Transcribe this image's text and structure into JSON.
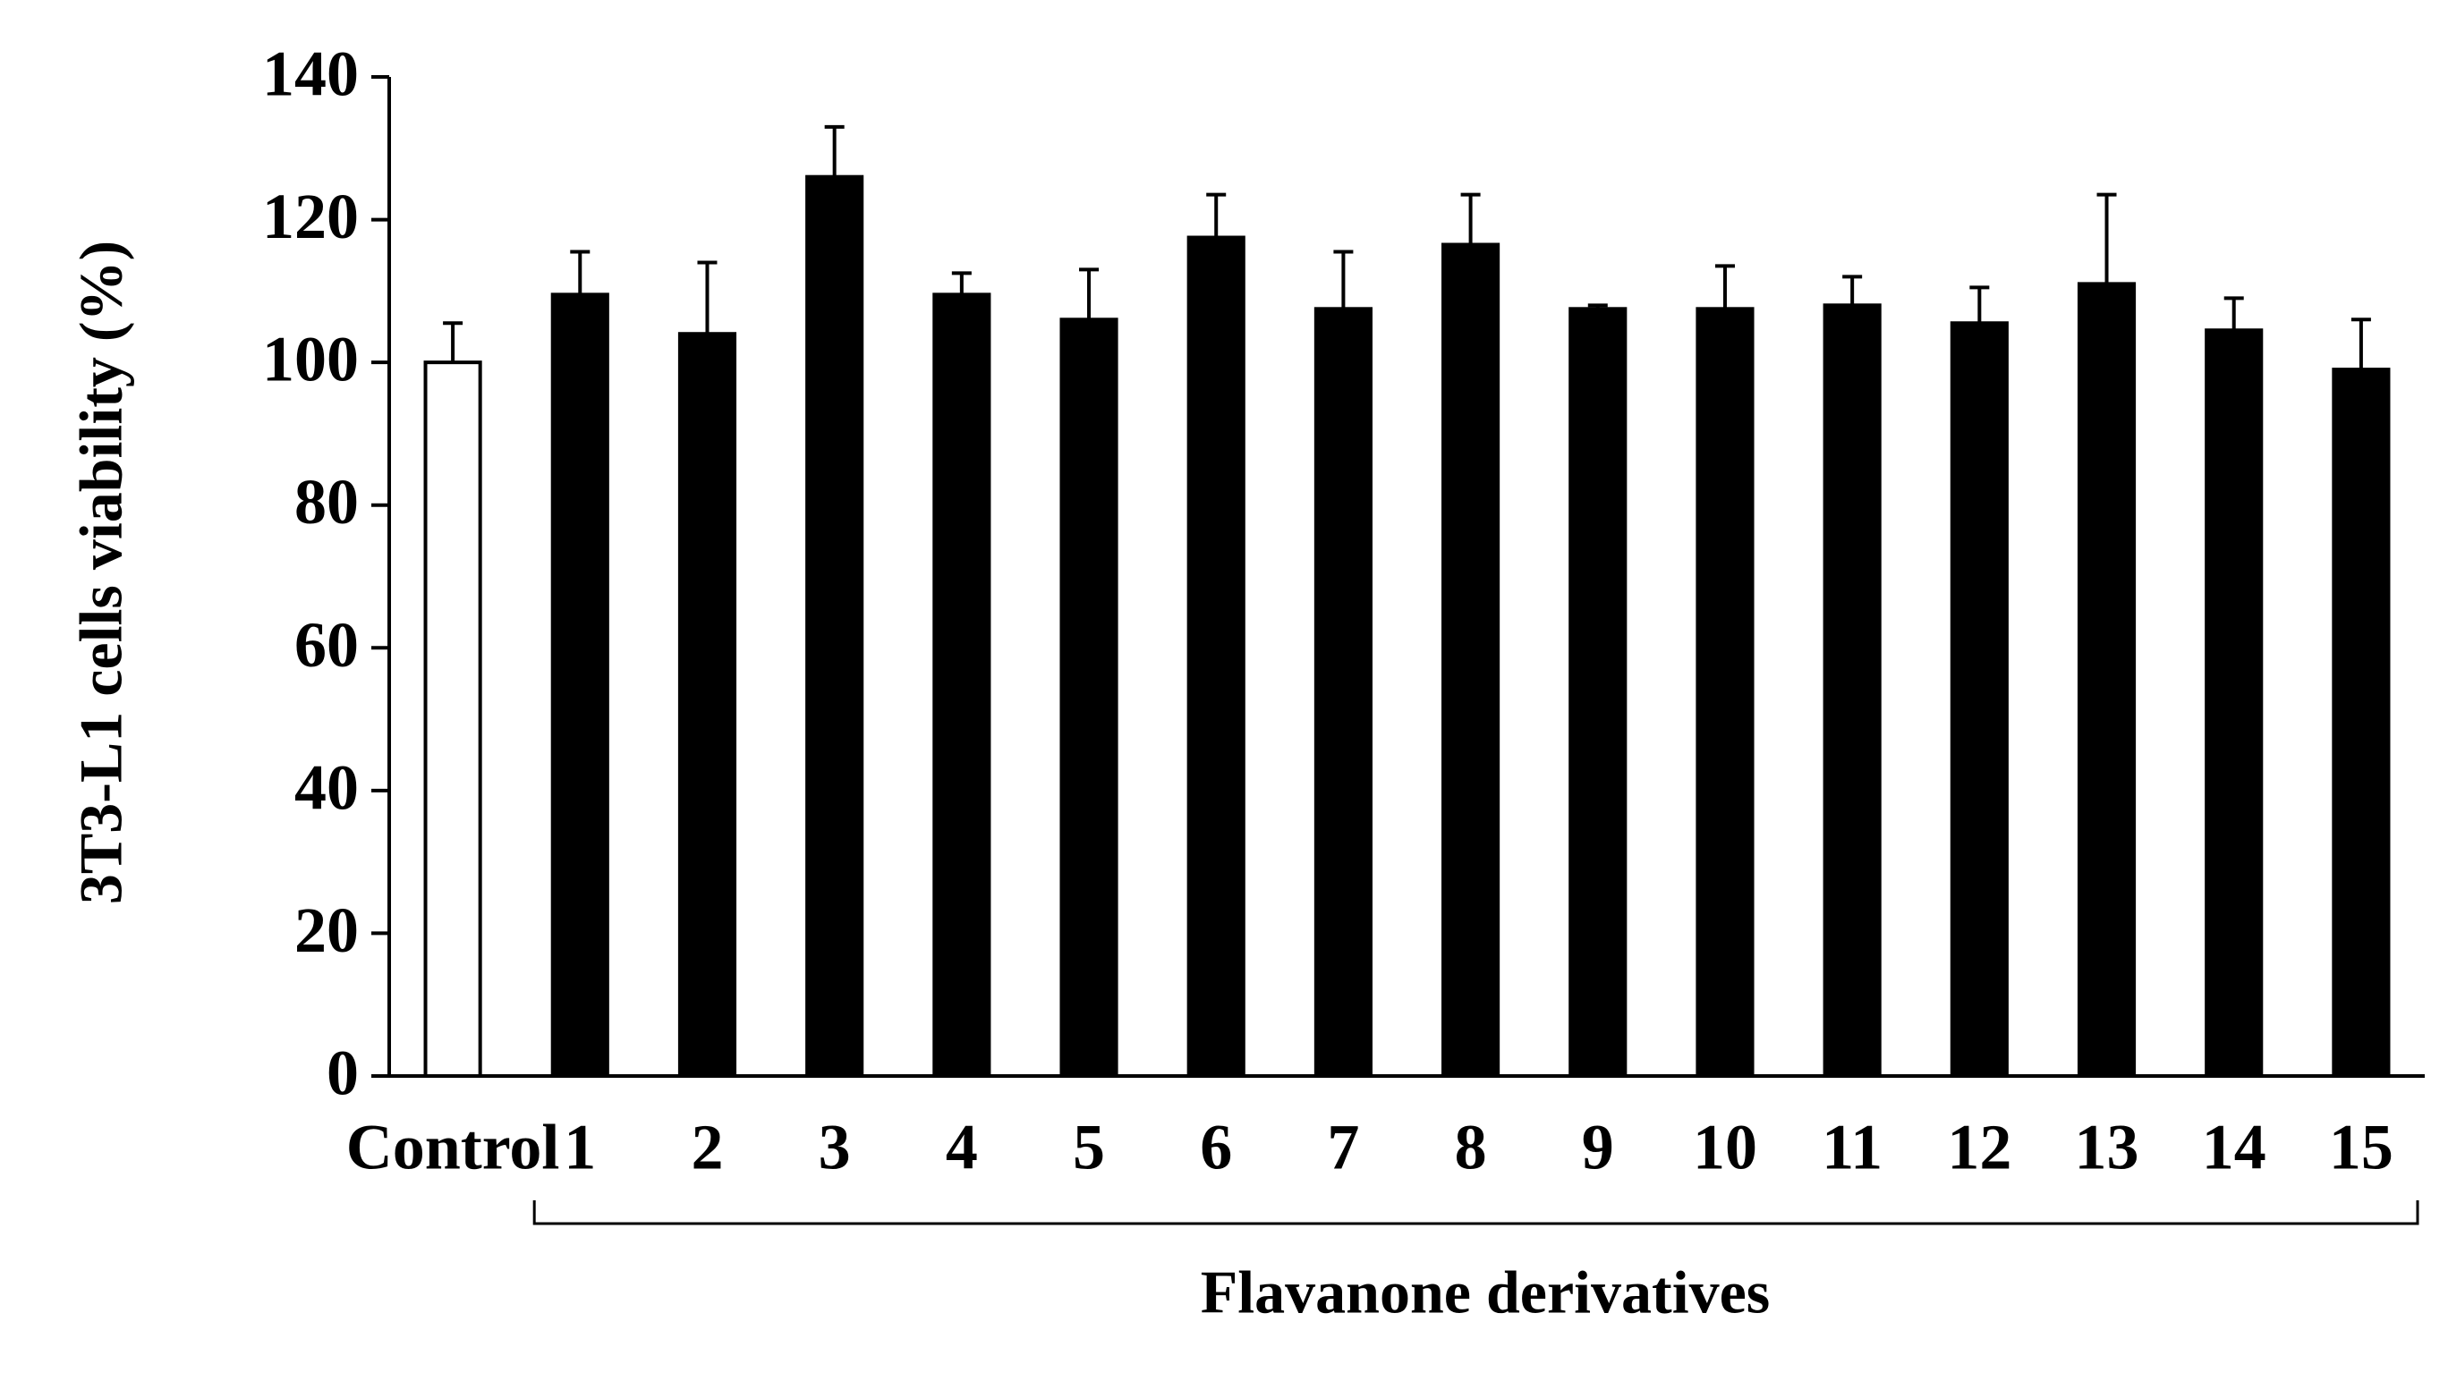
{
  "chart_data": {
    "type": "bar",
    "ylabel": "3T3-L1 cells viability (%)",
    "categories": [
      "Control",
      "1",
      "2",
      "3",
      "4",
      "5",
      "6",
      "7",
      "8",
      "9",
      "10",
      "11",
      "12",
      "13",
      "14",
      "15"
    ],
    "values": [
      100,
      109.5,
      104,
      126,
      109.5,
      106,
      117.5,
      107.5,
      116.5,
      107.5,
      107.5,
      108,
      105.5,
      111,
      104.5,
      99
    ],
    "errors": [
      5.5,
      6,
      10,
      7,
      3,
      7,
      6,
      8,
      7,
      0.5,
      6,
      4,
      5,
      12.5,
      4.5,
      7
    ],
    "colors": [
      "#ffffff",
      "#000000",
      "#000000",
      "#000000",
      "#000000",
      "#000000",
      "#000000",
      "#000000",
      "#000000",
      "#000000",
      "#000000",
      "#000000",
      "#000000",
      "#000000",
      "#000000",
      "#000000"
    ],
    "edgecolor": "#000000",
    "bracket_label": "Flavanone  derivatives",
    "ylim": [
      0,
      140
    ],
    "yticks": [
      0,
      20,
      40,
      60,
      80,
      100,
      120,
      140
    ],
    "grid": false
  }
}
